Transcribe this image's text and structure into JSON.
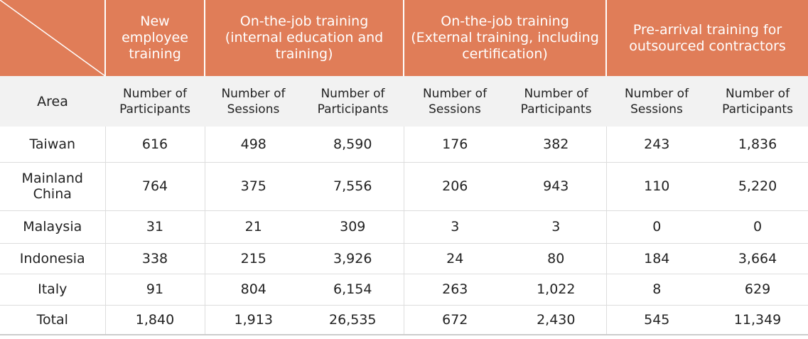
{
  "header": {
    "groups": [
      "New employee training",
      "On-the-job training (internal education and training)",
      "On-the-job training (External training, including certification)",
      "Pre-arrival training for outsourced contractors"
    ]
  },
  "subheader": {
    "area": "Area",
    "columns": [
      "Number of Participants",
      "Number of Sessions",
      "Number of Participants",
      "Number of Sessions",
      "Number of Participants",
      "Number of Sessions",
      "Number of Participants"
    ]
  },
  "rows": [
    {
      "area": "Taiwan",
      "values": [
        "616",
        "498",
        "8,590",
        "176",
        "382",
        "243",
        "1,836"
      ]
    },
    {
      "area": "Mainland China",
      "values": [
        "764",
        "375",
        "7,556",
        "206",
        "943",
        "110",
        "5,220"
      ]
    },
    {
      "area": "Malaysia",
      "values": [
        "31",
        "21",
        "309",
        "3",
        "3",
        "0",
        "0"
      ]
    },
    {
      "area": "Indonesia",
      "values": [
        "338",
        "215",
        "3,926",
        "24",
        "80",
        "184",
        "3,664"
      ]
    },
    {
      "area": "Italy",
      "values": [
        "91",
        "804",
        "6,154",
        "263",
        "1,022",
        "8",
        "629"
      ]
    },
    {
      "area": "Total",
      "values": [
        "1,840",
        "1,913",
        "26,535",
        "672",
        "2,430",
        "545",
        "11,349"
      ]
    }
  ]
}
